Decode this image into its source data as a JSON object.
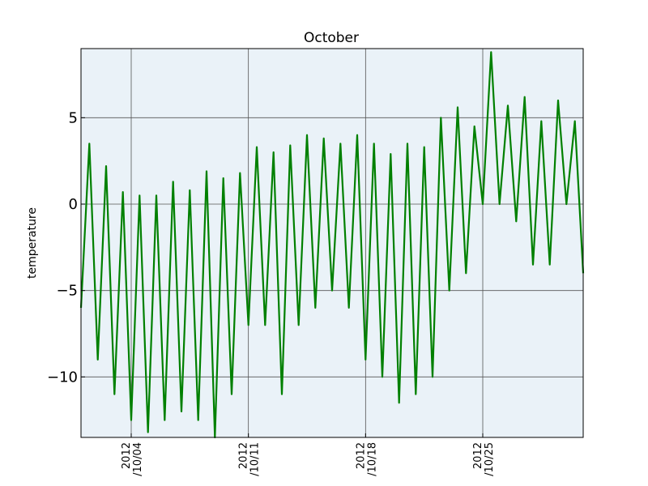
{
  "chart_data": {
    "type": "line",
    "title": "October",
    "xlabel": "",
    "ylabel": "temperature",
    "grid": true,
    "legend": "none",
    "xlim": [
      "2012-10-01",
      "2012-10-31"
    ],
    "ylim": [
      -13.5,
      9
    ],
    "y_ticks": [
      {
        "value": -10,
        "label": "−10"
      },
      {
        "value": -5,
        "label": "−5"
      },
      {
        "value": 0,
        "label": "0"
      },
      {
        "value": 5,
        "label": "5"
      }
    ],
    "x_ticks": [
      {
        "value": "2012-10-04",
        "line1": "2012",
        "line2": "/10/04"
      },
      {
        "value": "2012-10-11",
        "line1": "2012",
        "line2": "/10/11"
      },
      {
        "value": "2012-10-18",
        "line1": "2012",
        "line2": "/10/18"
      },
      {
        "value": "2012-10-25",
        "line1": "2012",
        "line2": "/10/25"
      }
    ],
    "series": [
      {
        "color": "#008000",
        "x": [
          "2012-10-01 00:00",
          "2012-10-01 12:00",
          "2012-10-02 00:00",
          "2012-10-02 12:00",
          "2012-10-03 00:00",
          "2012-10-03 12:00",
          "2012-10-04 00:00",
          "2012-10-04 12:00",
          "2012-10-05 00:00",
          "2012-10-05 12:00",
          "2012-10-06 00:00",
          "2012-10-06 12:00",
          "2012-10-07 00:00",
          "2012-10-07 12:00",
          "2012-10-08 00:00",
          "2012-10-08 12:00",
          "2012-10-09 00:00",
          "2012-10-09 12:00",
          "2012-10-10 00:00",
          "2012-10-10 12:00",
          "2012-10-11 00:00",
          "2012-10-11 12:00",
          "2012-10-12 00:00",
          "2012-10-12 12:00",
          "2012-10-13 00:00",
          "2012-10-13 12:00",
          "2012-10-14 00:00",
          "2012-10-14 12:00",
          "2012-10-15 00:00",
          "2012-10-15 12:00",
          "2012-10-16 00:00",
          "2012-10-16 12:00",
          "2012-10-17 00:00",
          "2012-10-17 12:00",
          "2012-10-18 00:00",
          "2012-10-18 12:00",
          "2012-10-19 00:00",
          "2012-10-19 12:00",
          "2012-10-20 00:00",
          "2012-10-20 12:00",
          "2012-10-21 00:00",
          "2012-10-21 12:00",
          "2012-10-22 00:00",
          "2012-10-22 12:00",
          "2012-10-23 00:00",
          "2012-10-23 12:00",
          "2012-10-24 00:00",
          "2012-10-24 12:00",
          "2012-10-25 00:00",
          "2012-10-25 12:00",
          "2012-10-26 00:00",
          "2012-10-26 12:00",
          "2012-10-27 00:00",
          "2012-10-27 12:00",
          "2012-10-28 00:00",
          "2012-10-28 12:00",
          "2012-10-29 00:00",
          "2012-10-29 12:00",
          "2012-10-30 00:00",
          "2012-10-30 12:00",
          "2012-10-31 00:00"
        ],
        "y": [
          -6,
          3.5,
          -9,
          2.2,
          -11,
          0.7,
          -12.5,
          0.5,
          -13.2,
          0.5,
          -12.5,
          1.3,
          -12,
          0.8,
          -12.5,
          1.9,
          -13.5,
          1.5,
          -11,
          1.8,
          -7,
          3.3,
          -7,
          3.0,
          -11,
          3.4,
          -7,
          4.0,
          -6,
          3.8,
          -5,
          3.5,
          -6,
          4.0,
          -9,
          3.5,
          -10,
          2.9,
          -11.5,
          3.5,
          -11,
          3.3,
          -10,
          5.0,
          -5,
          5.6,
          -4,
          4.5,
          0,
          8.8,
          0,
          5.7,
          -1,
          6.2,
          -3.5,
          4.8,
          -3.5,
          6.0,
          0,
          4.8,
          -4
        ]
      }
    ]
  }
}
